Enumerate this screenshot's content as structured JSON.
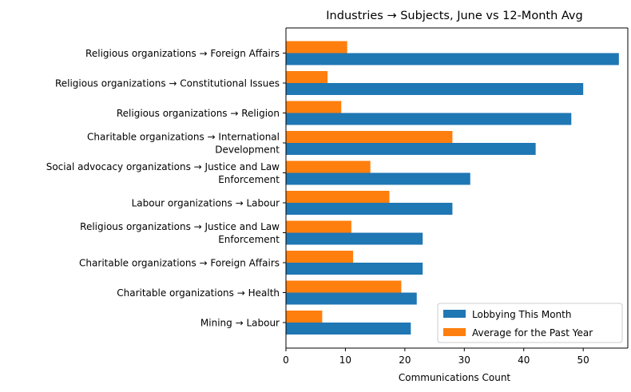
{
  "chart_data": {
    "type": "bar",
    "orientation": "horizontal",
    "title": "Industries → Subjects, June vs 12-Month Avg",
    "xlabel": "Communications Count",
    "ylabel": "",
    "xlim": [
      0,
      57.5
    ],
    "xticks": [
      0,
      10,
      20,
      30,
      40,
      50
    ],
    "grid": false,
    "legend_position": "lower-right",
    "categories": [
      [
        "Religious organizations → Foreign Affairs"
      ],
      [
        "Religious organizations → Constitutional Issues"
      ],
      [
        "Religious organizations → Religion"
      ],
      [
        "Charitable organizations → International",
        "Development"
      ],
      [
        "Social advocacy organizations → Justice and Law",
        "Enforcement"
      ],
      [
        "Labour organizations → Labour"
      ],
      [
        "Religious organizations → Justice and Law",
        "Enforcement"
      ],
      [
        "Charitable organizations → Foreign Affairs"
      ],
      [
        "Charitable organizations → Health"
      ],
      [
        "Mining → Labour"
      ]
    ],
    "series": [
      {
        "name": "Lobbying This Month",
        "color": "#1f77b4",
        "values": [
          56,
          50,
          48,
          42,
          31,
          28,
          23,
          23,
          22,
          21
        ]
      },
      {
        "name": "Average for the Past Year",
        "color": "#ff7f0e",
        "values": [
          10.3,
          7.0,
          9.3,
          28.0,
          14.2,
          17.4,
          11.0,
          11.3,
          19.4,
          6.1
        ]
      }
    ]
  }
}
